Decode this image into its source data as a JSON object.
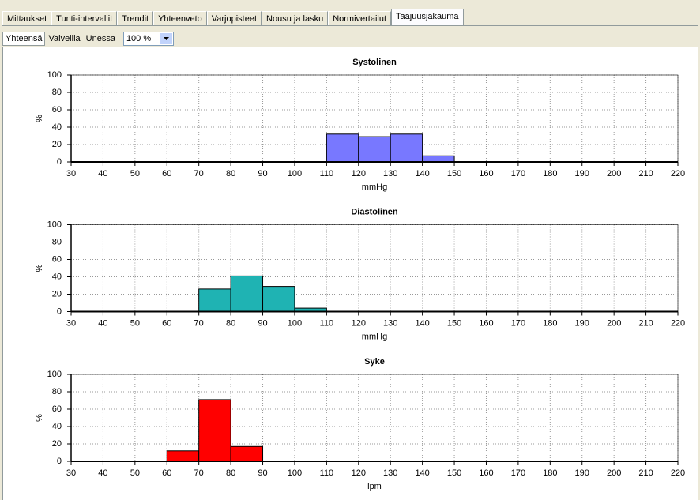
{
  "tabs": [
    "Mittaukset",
    "Tunti-intervallit",
    "Trendit",
    "Yhteenveto",
    "Varjopisteet",
    "Nousu ja lasku",
    "Normivertailut",
    "Taajuusjakauma"
  ],
  "subtabs": [
    "Yhteensä",
    "Valveilla",
    "Unessa"
  ],
  "zoom": "100 %",
  "chart_data": [
    {
      "type": "histogram",
      "title": "Systolinen",
      "x_label": "mmHg",
      "y_label": "%",
      "bins": [
        110,
        120,
        130,
        140,
        150
      ],
      "values": [
        32,
        29,
        32,
        7
      ],
      "color": "#7878ff",
      "xlim": [
        30,
        220
      ],
      "xticks": [
        30,
        40,
        50,
        60,
        70,
        80,
        90,
        100,
        110,
        120,
        130,
        140,
        150,
        160,
        170,
        180,
        190,
        200,
        210,
        220
      ],
      "ylim": [
        0,
        100
      ],
      "yticks": [
        0,
        20,
        40,
        60,
        80,
        100
      ],
      "grid": true
    },
    {
      "type": "histogram",
      "title": "Diastolinen",
      "x_label": "mmHg",
      "y_label": "%",
      "bins": [
        70,
        80,
        90,
        100,
        110
      ],
      "values": [
        26,
        41,
        29,
        4
      ],
      "color": "#1fb3b3",
      "xlim": [
        30,
        220
      ],
      "xticks": [
        30,
        40,
        50,
        60,
        70,
        80,
        90,
        100,
        110,
        120,
        130,
        140,
        150,
        160,
        170,
        180,
        190,
        200,
        210,
        220
      ],
      "ylim": [
        0,
        100
      ],
      "yticks": [
        0,
        20,
        40,
        60,
        80,
        100
      ],
      "grid": true
    },
    {
      "type": "histogram",
      "title": "Syke",
      "x_label": "lpm",
      "y_label": "%",
      "bins": [
        60,
        70,
        80,
        90
      ],
      "values": [
        12,
        71,
        17
      ],
      "color": "#ff0000",
      "xlim": [
        30,
        220
      ],
      "xticks": [
        30,
        40,
        50,
        60,
        70,
        80,
        90,
        100,
        110,
        120,
        130,
        140,
        150,
        160,
        170,
        180,
        190,
        200,
        210,
        220
      ],
      "ylim": [
        0,
        100
      ],
      "yticks": [
        0,
        20,
        40,
        60,
        80,
        100
      ],
      "grid": true
    }
  ]
}
